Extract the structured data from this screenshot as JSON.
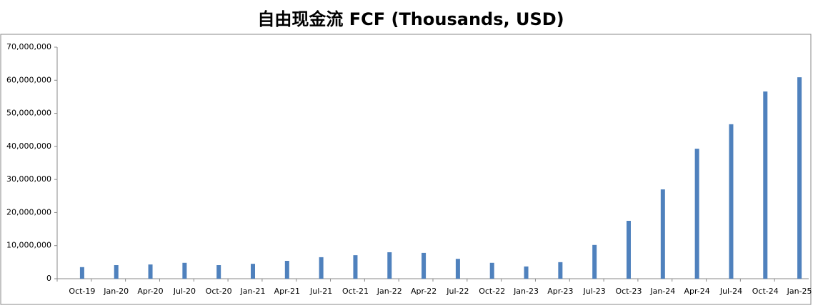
{
  "chart_data": {
    "type": "bar",
    "title": "自由现金流 FCF (Thousands, USD)",
    "categories": [
      "Oct-19",
      "Jan-20",
      "Apr-20",
      "Jul-20",
      "Oct-20",
      "Jan-21",
      "Apr-21",
      "Jul-21",
      "Oct-21",
      "Jan-22",
      "Apr-22",
      "Jul-22",
      "Oct-22",
      "Jan-23",
      "Apr-23",
      "Jul-23",
      "Oct-23",
      "Jan-24",
      "Apr-24",
      "Jul-24",
      "Oct-24",
      "Jan-25"
    ],
    "values": [
      3500000,
      4100000,
      4300000,
      4800000,
      4100000,
      4500000,
      5400000,
      6500000,
      7100000,
      8000000,
      7800000,
      6000000,
      4800000,
      3700000,
      5000000,
      10200000,
      17500000,
      27000000,
      39300000,
      46700000,
      56600000,
      60900000
    ],
    "color": "#4f81bd",
    "ylim": [
      0,
      70000000
    ],
    "yticks": [
      0,
      {
        "value": 10000000,
        "label": "10,000,000"
      },
      {
        "value": 20000000,
        "label": "20,000,000"
      },
      {
        "value": 30000000,
        "label": "30,000,000"
      },
      {
        "value": 40000000,
        "label": "40,000,000"
      },
      {
        "value": 50000000,
        "label": "50,000,000"
      },
      {
        "value": 60000000,
        "label": "60,000,000"
      },
      {
        "value": 70000000,
        "label": "70,000,000"
      }
    ],
    "grid": false
  }
}
